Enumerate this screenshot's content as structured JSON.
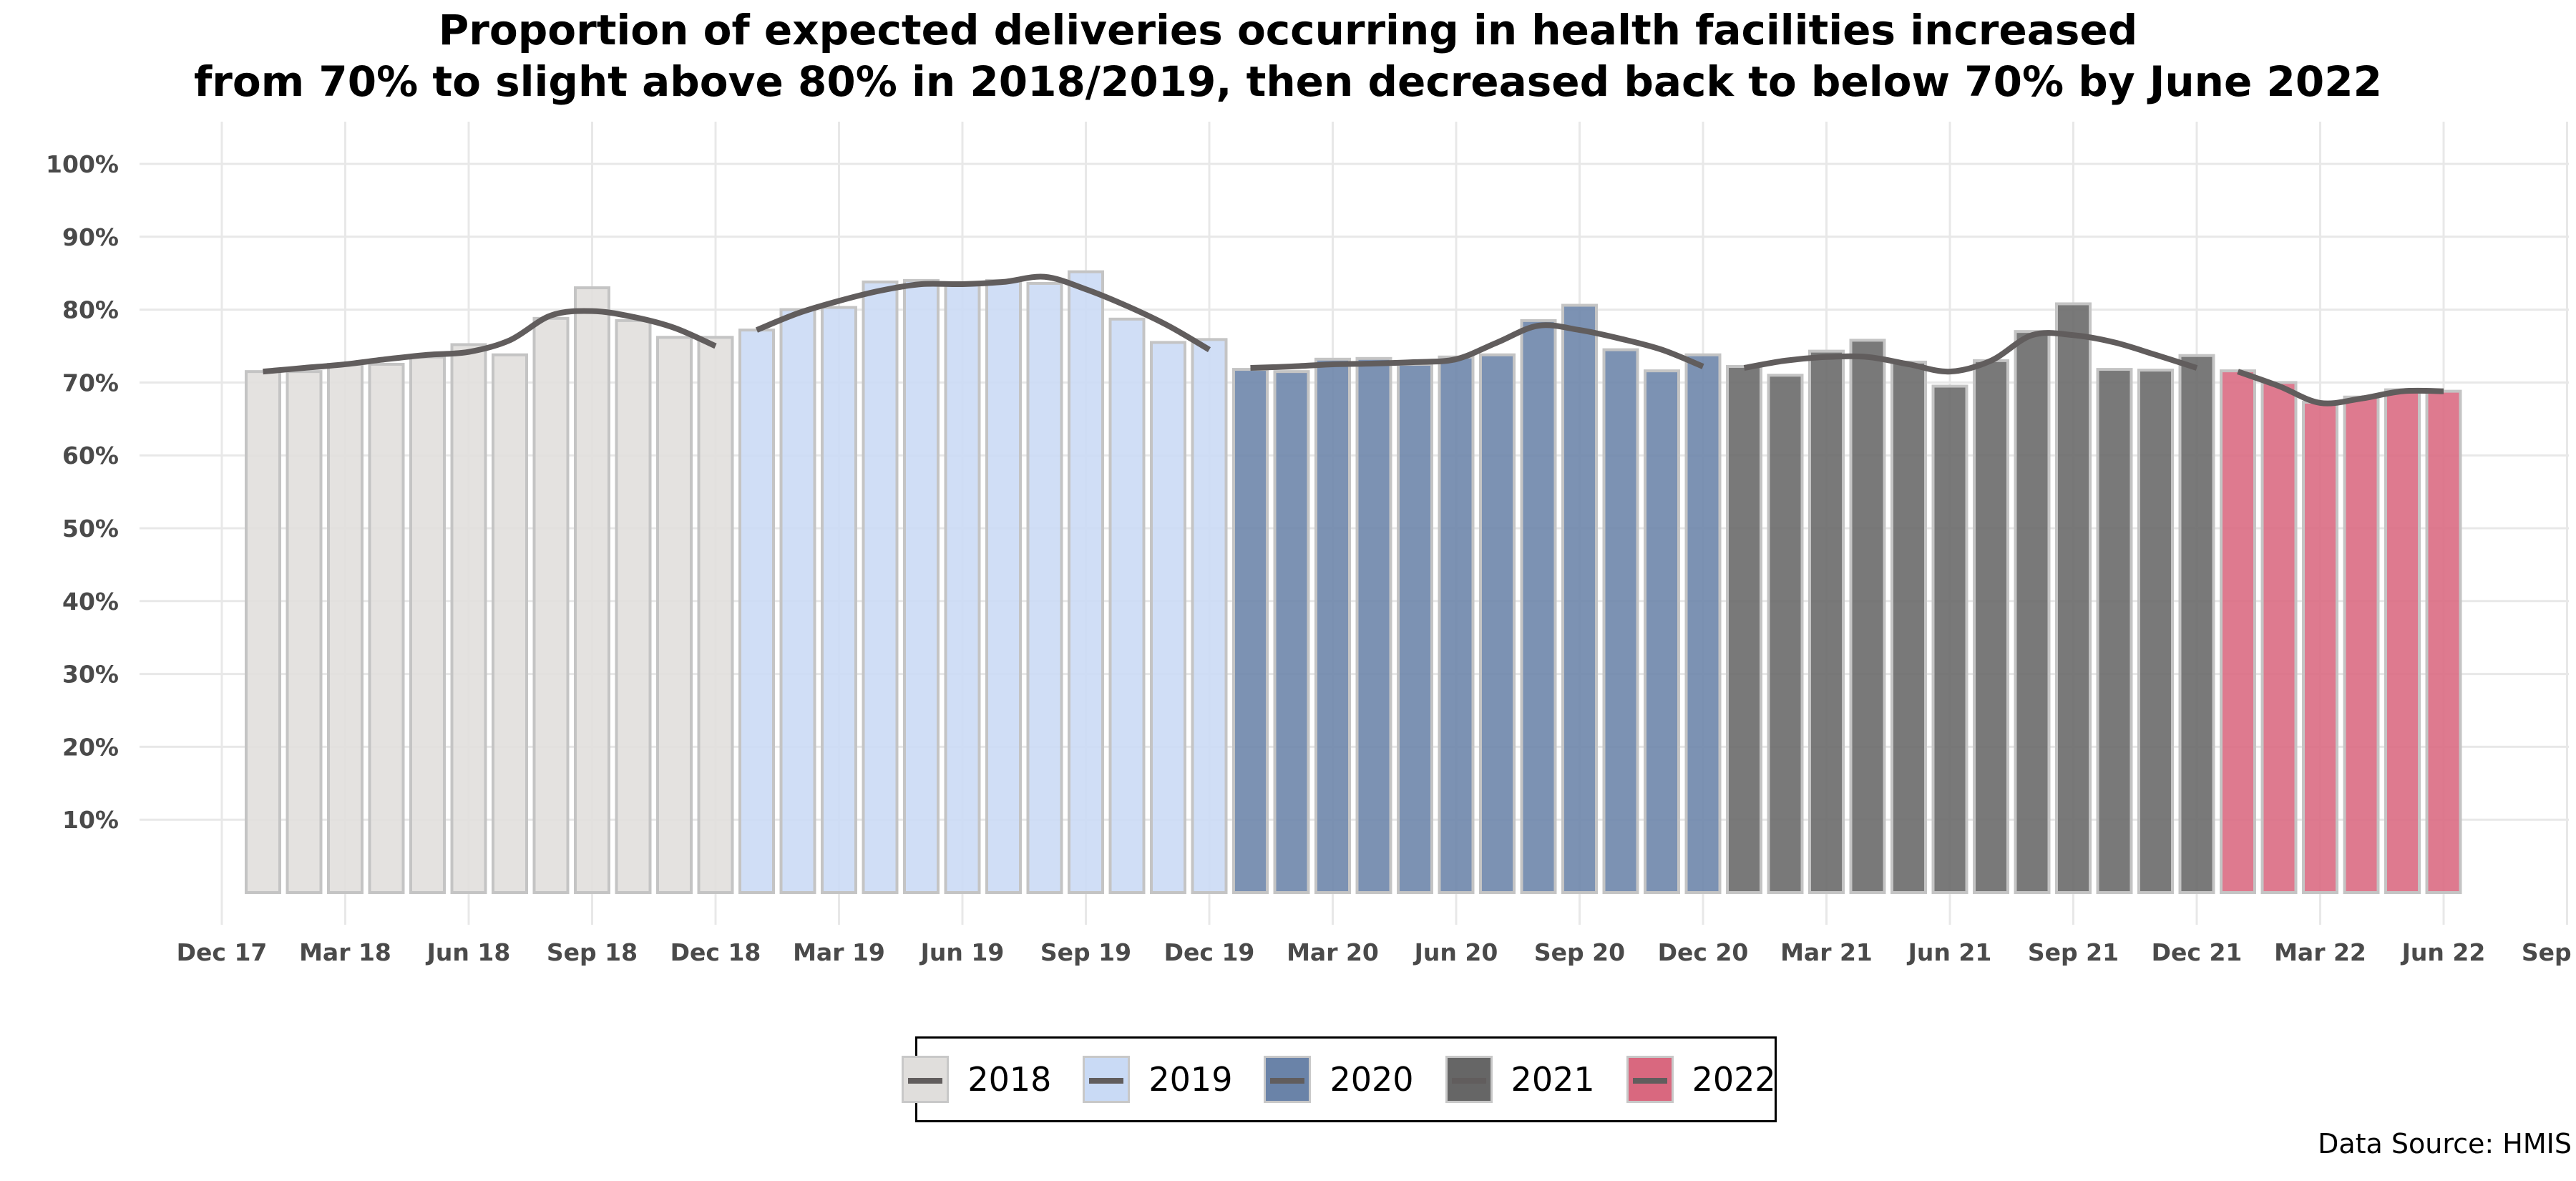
{
  "title": {
    "line1": "Proportion of expected deliveries occurring in health facilities increased",
    "line2": "from 70% to slight above 80% in 2018/2019, then decreased back to below 70% by June 2022"
  },
  "source": "Data Source: HMIS",
  "chart_data": {
    "type": "bar",
    "x_axis": {
      "ticks": [
        "Dec 17",
        "Mar 18",
        "Jun 18",
        "Sep 18",
        "Dec 18",
        "Mar 19",
        "Jun 19",
        "Sep 19",
        "Dec 19",
        "Mar 20",
        "Jun 20",
        "Sep 20",
        "Dec 20",
        "Mar 21",
        "Jun 21",
        "Sep 21",
        "Dec 21",
        "Mar 22",
        "Jun 22",
        "Sep 22"
      ]
    },
    "y_axis": {
      "min": 0,
      "max": 100,
      "ticks": [
        "10%",
        "20%",
        "30%",
        "40%",
        "50%",
        "60%",
        "70%",
        "80%",
        "90%",
        "100%"
      ]
    },
    "grid": true,
    "legend_position": "bottom",
    "series": [
      {
        "name": "2018",
        "color": "#e0dedc",
        "months": [
          "Jan 18",
          "Feb 18",
          "Mar 18",
          "Apr 18",
          "May 18",
          "Jun 18",
          "Jul 18",
          "Aug 18",
          "Sep 18",
          "Oct 18",
          "Nov 18",
          "Dec 18"
        ],
        "values": [
          71.5,
          71.5,
          72.5,
          72.5,
          73.5,
          75.2,
          73.8,
          78.8,
          83.0,
          78.5,
          76.2,
          76.2
        ],
        "trend": [
          71.5,
          72.0,
          72.5,
          73.2,
          73.8,
          74.2,
          75.8,
          79.2,
          79.8,
          79.0,
          77.5,
          75.0
        ]
      },
      {
        "name": "2019",
        "color": "#c9daf5",
        "months": [
          "Jan 19",
          "Feb 19",
          "Mar 19",
          "Apr 19",
          "May 19",
          "Jun 19",
          "Jul 19",
          "Aug 19",
          "Sep 19",
          "Oct 19",
          "Nov 19",
          "Dec 19"
        ],
        "values": [
          77.2,
          80.0,
          80.3,
          83.8,
          84.0,
          83.5,
          84.0,
          83.6,
          85.2,
          78.7,
          75.5,
          75.9
        ],
        "trend": [
          77.2,
          79.5,
          81.2,
          82.6,
          83.5,
          83.5,
          83.8,
          84.5,
          82.8,
          80.5,
          77.8,
          74.5
        ]
      },
      {
        "name": "2020",
        "color": "#6a83a8",
        "months": [
          "Jan 20",
          "Feb 20",
          "Mar 20",
          "Apr 20",
          "May 20",
          "Jun 20",
          "Jul 20",
          "Aug 20",
          "Sep 20",
          "Oct 20",
          "Nov 20",
          "Dec 20"
        ],
        "values": [
          71.8,
          71.5,
          73.2,
          73.3,
          72.5,
          73.5,
          73.8,
          78.5,
          80.6,
          74.5,
          71.6,
          73.8
        ],
        "trend": [
          72.0,
          72.2,
          72.5,
          72.6,
          72.8,
          73.2,
          75.5,
          77.8,
          77.2,
          76.0,
          74.5,
          72.2
        ]
      },
      {
        "name": "2021",
        "color": "#666666",
        "months": [
          "Jan 21",
          "Feb 21",
          "Mar 21",
          "Apr 21",
          "May 21",
          "Jun 21",
          "Jul 21",
          "Aug 21",
          "Sep 21",
          "Oct 21",
          "Nov 21",
          "Dec 21"
        ],
        "values": [
          72.2,
          71.0,
          74.3,
          75.8,
          72.8,
          69.5,
          73.0,
          77.0,
          80.8,
          71.8,
          71.7,
          73.7
        ],
        "trend": [
          72.0,
          73.0,
          73.5,
          73.5,
          72.5,
          71.5,
          73.0,
          76.5,
          76.5,
          75.5,
          73.8,
          72.0
        ]
      },
      {
        "name": "2022",
        "color": "#d9687f",
        "months": [
          "Jan 22",
          "Feb 22",
          "Mar 22",
          "Apr 22",
          "May 22",
          "Jun 22"
        ],
        "values": [
          71.6,
          70.0,
          67.3,
          68.0,
          69.0,
          68.8
        ],
        "trend": [
          71.5,
          69.5,
          67.2,
          67.8,
          68.8,
          68.8
        ]
      }
    ]
  }
}
